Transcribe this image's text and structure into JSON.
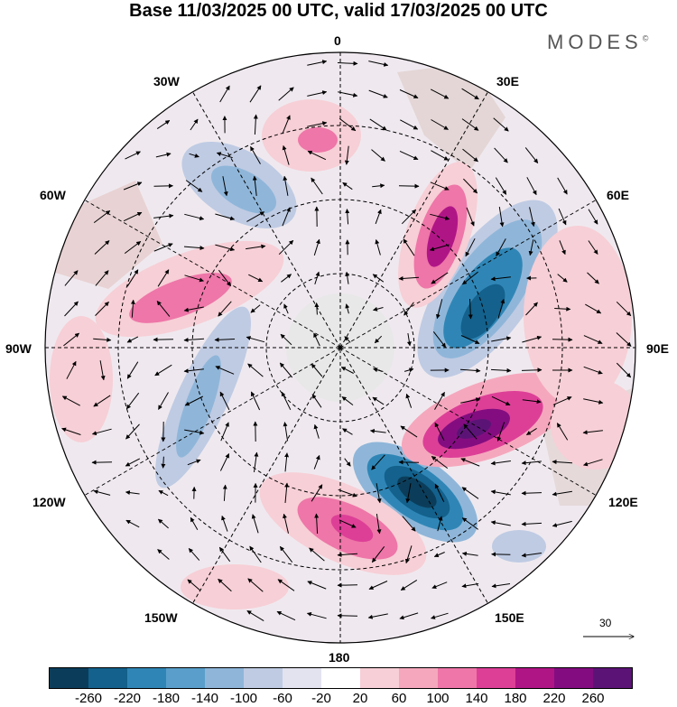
{
  "title": "Base 11/03/2025 00 UTC, valid 17/03/2025 00 UTC",
  "brand": "MODES",
  "brand_mark": "©",
  "longitude_labels": {
    "north": "0",
    "ne": "30E",
    "ene": "60E",
    "east": "90E",
    "ese": "120E",
    "se": "150E",
    "south": "180",
    "sw": "150W",
    "wsw": "120W",
    "west": "90W",
    "wnw": "60W",
    "nw": "30W"
  },
  "reference_vector_label": "30",
  "colorbar": {
    "ticks": [
      "-260",
      "-220",
      "-180",
      "-140",
      "-100",
      "-60",
      "-20",
      "20",
      "60",
      "100",
      "140",
      "180",
      "220",
      "260"
    ],
    "colors": [
      "#0b3d5a",
      "#13618c",
      "#2f86b6",
      "#5a9fcb",
      "#8fb6d9",
      "#bfcbe3",
      "#e3e3f0",
      "#ffffff",
      "#f7cfd6",
      "#f5a8bd",
      "#ee76a8",
      "#dd3f97",
      "#b01586",
      "#830d80",
      "#5b1476"
    ]
  },
  "map": {
    "projection": "south-polar-stereographic",
    "background_land_color": "#e6e6e6",
    "graticule_style": "dashed"
  }
}
